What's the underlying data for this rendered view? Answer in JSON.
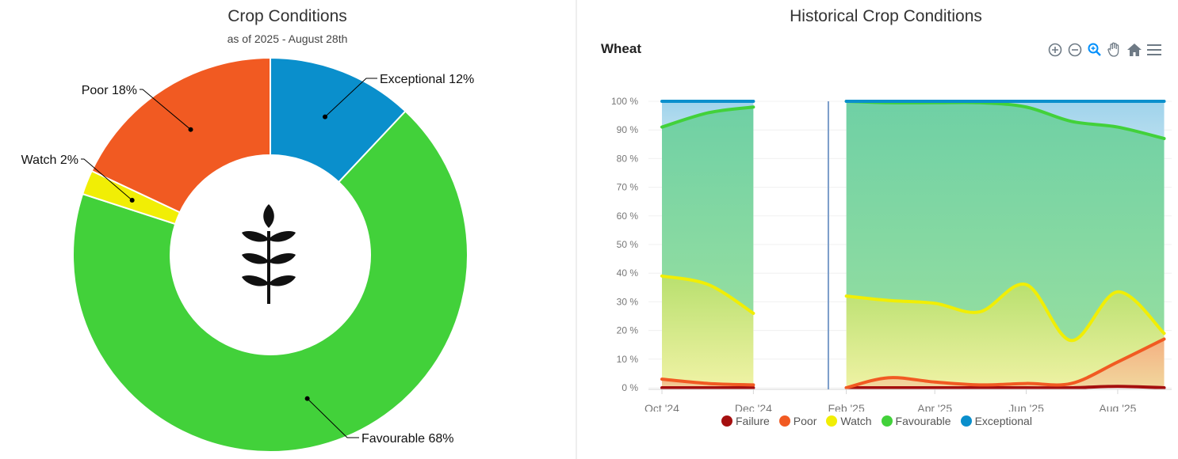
{
  "left": {
    "title": "Crop Conditions",
    "subtitle": "as of 2025 - August 28th",
    "icon": "wheat-icon"
  },
  "right": {
    "title": "Historical Crop Conditions",
    "series_label": "Wheat",
    "toolbar": [
      "zoom-in-icon",
      "zoom-out-icon",
      "zoom-selection-icon",
      "pan-icon",
      "home-icon",
      "menu-icon"
    ]
  },
  "chart_data": [
    {
      "type": "pie",
      "variant": "donut",
      "title": "Crop Conditions",
      "subtitle": "as of 2025 - August 28th",
      "slices": [
        {
          "name": "Exceptional",
          "label": "Exceptional 12%",
          "value": 12,
          "color": "#0a8fcc"
        },
        {
          "name": "Favourable",
          "label": "Favourable 68%",
          "value": 68,
          "color": "#42d13a"
        },
        {
          "name": "Watch",
          "label": "Watch 2%",
          "value": 2,
          "color": "#f1ee05"
        },
        {
          "name": "Poor",
          "label": "Poor 18%",
          "value": 18,
          "color": "#f15a22"
        }
      ]
    },
    {
      "type": "area",
      "stacked": true,
      "title": "Historical Crop Conditions",
      "subtitle": "Wheat",
      "ylim": [
        0,
        100
      ],
      "yticks": [
        "0 %",
        "10 %",
        "20 %",
        "30 %",
        "40 %",
        "50 %",
        "60 %",
        "70 %",
        "80 %",
        "90 %",
        "100 %"
      ],
      "xticks": [
        "Oct '24",
        "Dec '24",
        "Feb '25",
        "Apr '25",
        "Jun '25",
        "Aug '25"
      ],
      "grid": true,
      "legend": "bottom",
      "segments": [
        {
          "x": [
            "2024-10-01",
            "2024-11-01",
            "2024-12-01"
          ],
          "series": [
            {
              "name": "Failure",
              "color": "#a50f0f",
              "values": [
                0,
                0,
                0
              ]
            },
            {
              "name": "Poor",
              "color": "#f15a22",
              "values": [
                3,
                1.5,
                1
              ]
            },
            {
              "name": "Watch",
              "color": "#f1ee05",
              "values": [
                39,
                36,
                26
              ]
            },
            {
              "name": "Favourable",
              "color": "#42d13a",
              "values": [
                91,
                96,
                98
              ]
            },
            {
              "name": "Exceptional",
              "color": "#0a8fcc",
              "values": [
                100,
                100,
                100
              ]
            }
          ]
        },
        {
          "x": [
            "2025-02-01",
            "2025-03-01",
            "2025-04-01",
            "2025-05-01",
            "2025-06-01",
            "2025-07-01",
            "2025-08-01",
            "2025-09-01"
          ],
          "series": [
            {
              "name": "Failure",
              "color": "#a50f0f",
              "values": [
                0,
                0,
                0,
                0,
                0,
                0,
                0.5,
                0
              ]
            },
            {
              "name": "Poor",
              "color": "#f15a22",
              "values": [
                0,
                3.5,
                2,
                1,
                1.5,
                1.5,
                9,
                17
              ]
            },
            {
              "name": "Watch",
              "color": "#f1ee05",
              "values": [
                32,
                30.5,
                29.5,
                26.5,
                36,
                16.5,
                33.5,
                19
              ]
            },
            {
              "name": "Favourable",
              "color": "#42d13a",
              "values": [
                100,
                99.5,
                99.5,
                99.5,
                98,
                93,
                91,
                87
              ]
            },
            {
              "name": "Exceptional",
              "color": "#0a8fcc",
              "values": [
                100,
                100,
                100,
                100,
                100,
                100,
                100,
                100
              ]
            }
          ]
        }
      ]
    }
  ]
}
